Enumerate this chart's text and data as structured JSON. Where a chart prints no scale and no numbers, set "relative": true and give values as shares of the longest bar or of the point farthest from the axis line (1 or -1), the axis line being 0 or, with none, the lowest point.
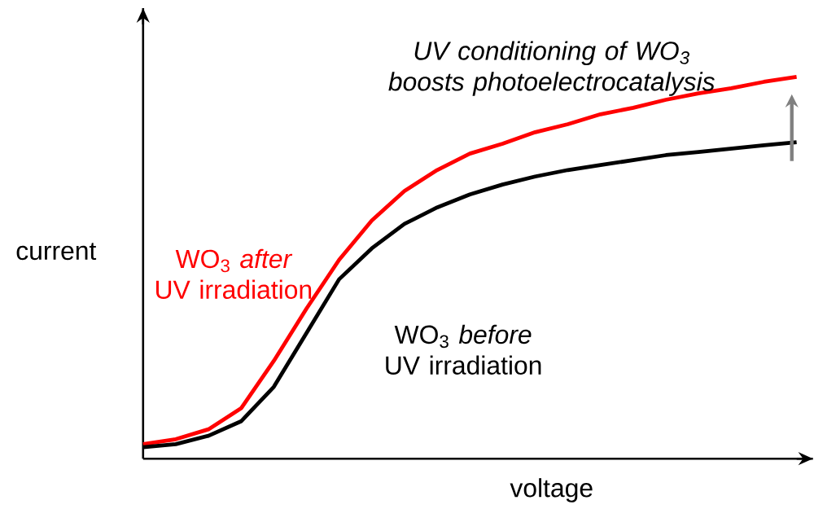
{
  "chart_data": {
    "type": "line",
    "relative": true,
    "title": "*UV conditioning of WO$_{3}$ boosts photoelectrocatalysis*",
    "xlabel": "voltage",
    "ylabel": "current",
    "categories": [
      null,
      null,
      null,
      null,
      null,
      null,
      null,
      null,
      null,
      null,
      null,
      null,
      null,
      null,
      null,
      null,
      null,
      null,
      null,
      null,
      null
    ],
    "series": [
      {
        "name": "WO$_{3}$ *after* UV irradiation",
        "color": "#ff0000",
        "values": [
          0.038,
          0.051,
          0.077,
          0.132,
          0.256,
          0.393,
          0.521,
          0.624,
          0.701,
          0.756,
          0.799,
          0.825,
          0.855,
          0.876,
          0.902,
          0.919,
          0.94,
          0.957,
          0.97,
          0.987,
          1
        ]
      },
      {
        "name": "WO$_{3}$ *before* UV irradiation",
        "color": "#000000",
        "values": [
          0.03,
          0.038,
          0.06,
          0.098,
          0.188,
          0.329,
          0.47,
          0.551,
          0.615,
          0.658,
          0.692,
          0.718,
          0.739,
          0.756,
          0.769,
          0.782,
          0.795,
          0.803,
          0.812,
          0.821,
          0.829
        ]
      }
    ]
  }
}
